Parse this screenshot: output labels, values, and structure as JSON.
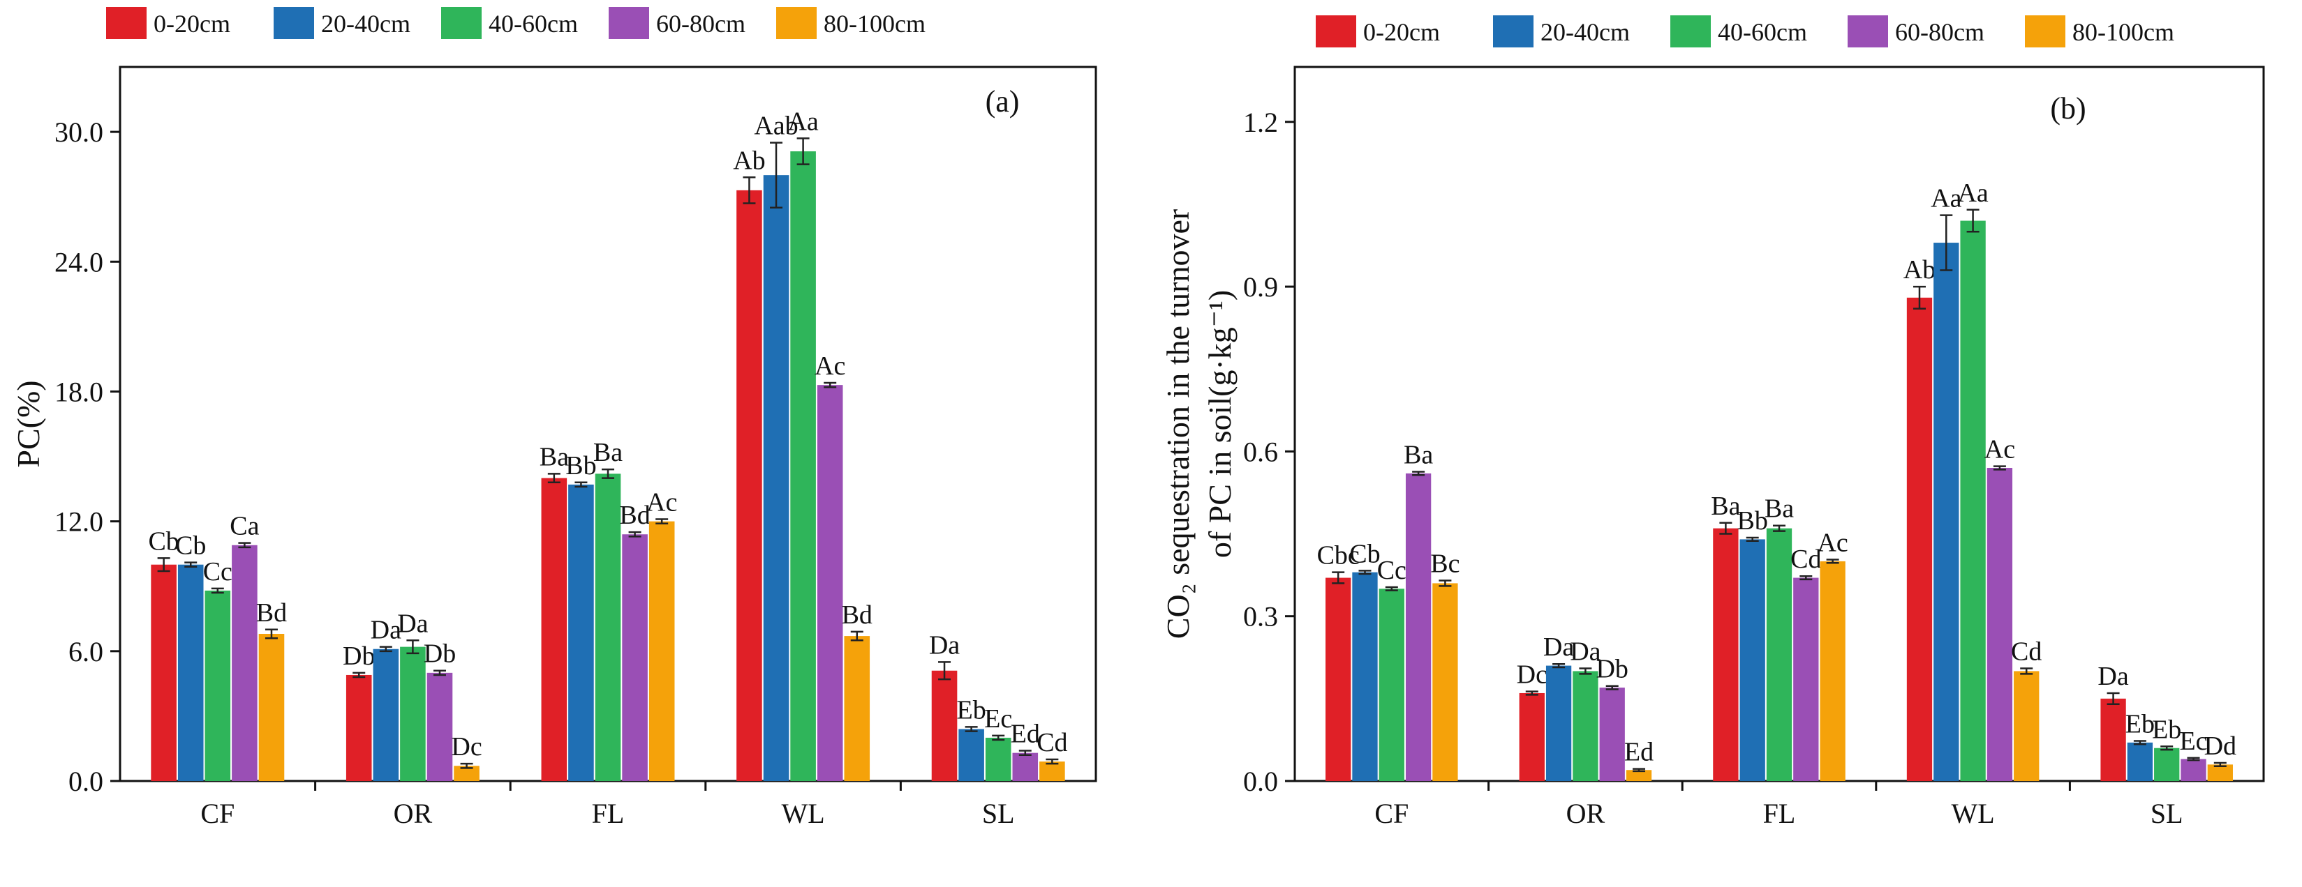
{
  "chart_data": [
    {
      "type": "bar",
      "panel_label": "(a)",
      "ylabel": "PC(%)",
      "xlabel": "",
      "categories": [
        "CF",
        "OR",
        "FL",
        "WL",
        "SL"
      ],
      "ylim": [
        0,
        33
      ],
      "yticks": [
        0,
        6,
        12,
        18,
        24,
        30
      ],
      "ytick_labels": [
        "0.0",
        "6.0",
        "12.0",
        "18.0",
        "24.0",
        "30.0"
      ],
      "series": [
        {
          "name": "0-20cm",
          "color": "#e02027",
          "values": [
            10.0,
            4.9,
            14.0,
            27.3,
            5.1
          ],
          "errors": [
            0.3,
            0.1,
            0.2,
            0.6,
            0.4
          ],
          "labels": [
            "Cb",
            "Db",
            "Ba",
            "Ab",
            "Da"
          ]
        },
        {
          "name": "20-40cm",
          "color": "#1f6fb4",
          "values": [
            10.0,
            6.1,
            13.7,
            28.0,
            2.4
          ],
          "errors": [
            0.1,
            0.1,
            0.1,
            1.5,
            0.1
          ],
          "labels": [
            "Cb",
            "Da",
            "Bb",
            "Aab",
            "Eb"
          ]
        },
        {
          "name": "40-60cm",
          "color": "#2fb55a",
          "values": [
            8.8,
            6.2,
            14.2,
            29.1,
            2.0
          ],
          "errors": [
            0.1,
            0.3,
            0.2,
            0.6,
            0.1
          ],
          "labels": [
            "Cc",
            "Da",
            "Ba",
            "Aa",
            "Ec"
          ]
        },
        {
          "name": "60-80cm",
          "color": "#9a4fb5",
          "values": [
            10.9,
            5.0,
            11.4,
            18.3,
            1.3
          ],
          "errors": [
            0.1,
            0.1,
            0.1,
            0.1,
            0.1
          ],
          "labels": [
            "Ca",
            "Db",
            "Bd",
            "Ac",
            "Ed"
          ]
        },
        {
          "name": "80-100cm",
          "color": "#f5a20a",
          "values": [
            6.8,
            0.7,
            12.0,
            6.7,
            0.9
          ],
          "errors": [
            0.2,
            0.1,
            0.1,
            0.2,
            0.1
          ],
          "labels": [
            "Bd",
            "Dc",
            "Ac",
            "Bd",
            "Cd"
          ]
        }
      ]
    },
    {
      "type": "bar",
      "panel_label": "(b)",
      "ylabel_line1": "CO₂ sequestration in the turnover",
      "ylabel_line2": "of PC in soil(g·kg⁻¹)",
      "xlabel": "",
      "categories": [
        "CF",
        "OR",
        "FL",
        "WL",
        "SL"
      ],
      "ylim": [
        0,
        1.3
      ],
      "yticks": [
        0,
        0.3,
        0.6,
        0.9,
        1.2
      ],
      "ytick_labels": [
        "0.0",
        "0.3",
        "0.6",
        "0.9",
        "1.2"
      ],
      "series": [
        {
          "name": "0-20cm",
          "color": "#e02027",
          "values": [
            0.37,
            0.16,
            0.46,
            0.88,
            0.15
          ],
          "errors": [
            0.01,
            0.003,
            0.01,
            0.02,
            0.01
          ],
          "labels": [
            "Cbc",
            "Dc",
            "Ba",
            "Ab",
            "Da"
          ]
        },
        {
          "name": "20-40cm",
          "color": "#1f6fb4",
          "values": [
            0.38,
            0.21,
            0.44,
            0.98,
            0.07
          ],
          "errors": [
            0.003,
            0.003,
            0.003,
            0.05,
            0.003
          ],
          "labels": [
            "Cb",
            "Da",
            "Bb",
            "Aa",
            "Eb"
          ]
        },
        {
          "name": "40-60cm",
          "color": "#2fb55a",
          "values": [
            0.35,
            0.2,
            0.46,
            1.02,
            0.06
          ],
          "errors": [
            0.003,
            0.005,
            0.005,
            0.02,
            0.003
          ],
          "labels": [
            "Cc",
            "Da",
            "Ba",
            "Aa",
            "Eb"
          ]
        },
        {
          "name": "60-80cm",
          "color": "#9a4fb5",
          "values": [
            0.56,
            0.17,
            0.37,
            0.57,
            0.04
          ],
          "errors": [
            0.003,
            0.003,
            0.003,
            0.003,
            0.002
          ],
          "labels": [
            "Ba",
            "Db",
            "Cd",
            "Ac",
            "Ec"
          ]
        },
        {
          "name": "80-100cm",
          "color": "#f5a20a",
          "values": [
            0.36,
            0.02,
            0.4,
            0.2,
            0.03
          ],
          "errors": [
            0.005,
            0.002,
            0.003,
            0.005,
            0.003
          ],
          "labels": [
            "Bc",
            "Ed",
            "Ac",
            "Cd",
            "Dd"
          ]
        }
      ]
    }
  ]
}
